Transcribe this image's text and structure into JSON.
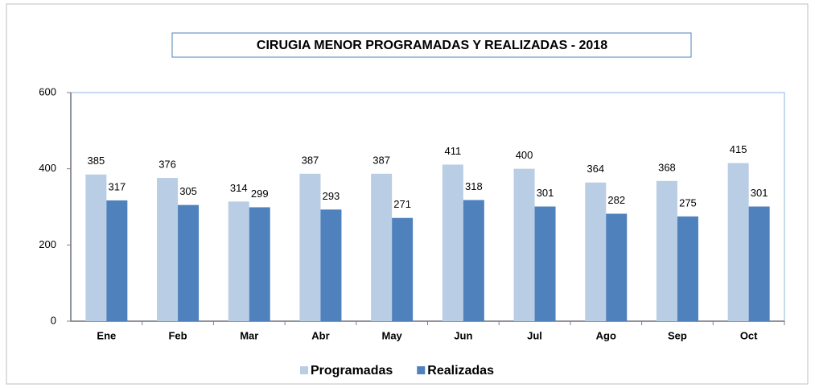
{
  "chart_data": {
    "type": "bar",
    "title": "CIRUGIA MENOR PROGRAMADAS Y REALIZADAS - 2018",
    "categories": [
      "Ene",
      "Feb",
      "Mar",
      "Abr",
      "May",
      "Jun",
      "Jul",
      "Ago",
      "Sep",
      "Oct"
    ],
    "series": [
      {
        "name": "Programadas",
        "color": "#b9cde5",
        "values": [
          385,
          376,
          314,
          387,
          387,
          411,
          400,
          364,
          368,
          415
        ]
      },
      {
        "name": "Realizadas",
        "color": "#4f81bd",
        "values": [
          317,
          305,
          299,
          293,
          271,
          318,
          301,
          282,
          275,
          301
        ]
      }
    ],
    "ylim": [
      0,
      600
    ],
    "yticks": [
      0,
      200,
      400,
      600
    ],
    "grid": false,
    "legend": "bottom"
  }
}
